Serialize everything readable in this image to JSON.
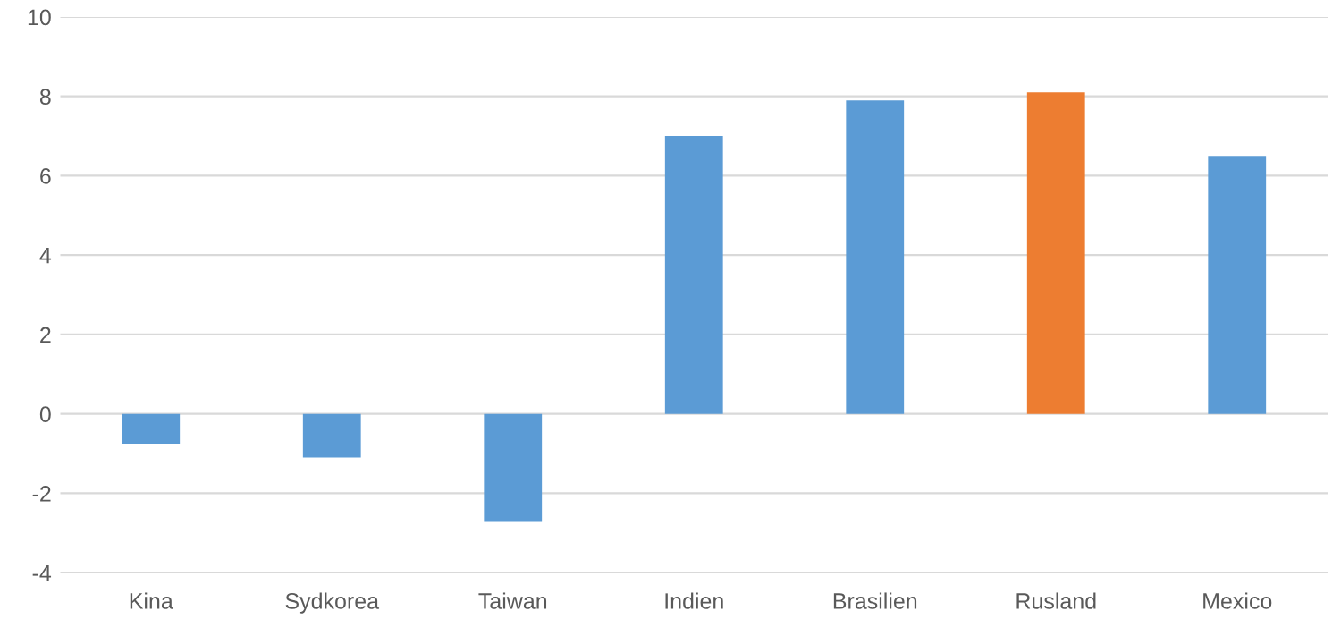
{
  "chart_data": {
    "type": "bar",
    "categories": [
      "Kina",
      "Sydkorea",
      "Taiwan",
      "Indien",
      "Brasilien",
      "Rusland",
      "Mexico"
    ],
    "values": [
      -0.75,
      -1.1,
      -2.7,
      7.0,
      7.9,
      8.1,
      6.5
    ],
    "colors": [
      "#5b9bd5",
      "#5b9bd5",
      "#5b9bd5",
      "#5b9bd5",
      "#5b9bd5",
      "#ed7d31",
      "#5b9bd5"
    ],
    "ylim": [
      -4,
      10
    ],
    "yticks": [
      -4,
      -2,
      0,
      2,
      4,
      6,
      8,
      10
    ],
    "grid": "y",
    "legend": false
  }
}
